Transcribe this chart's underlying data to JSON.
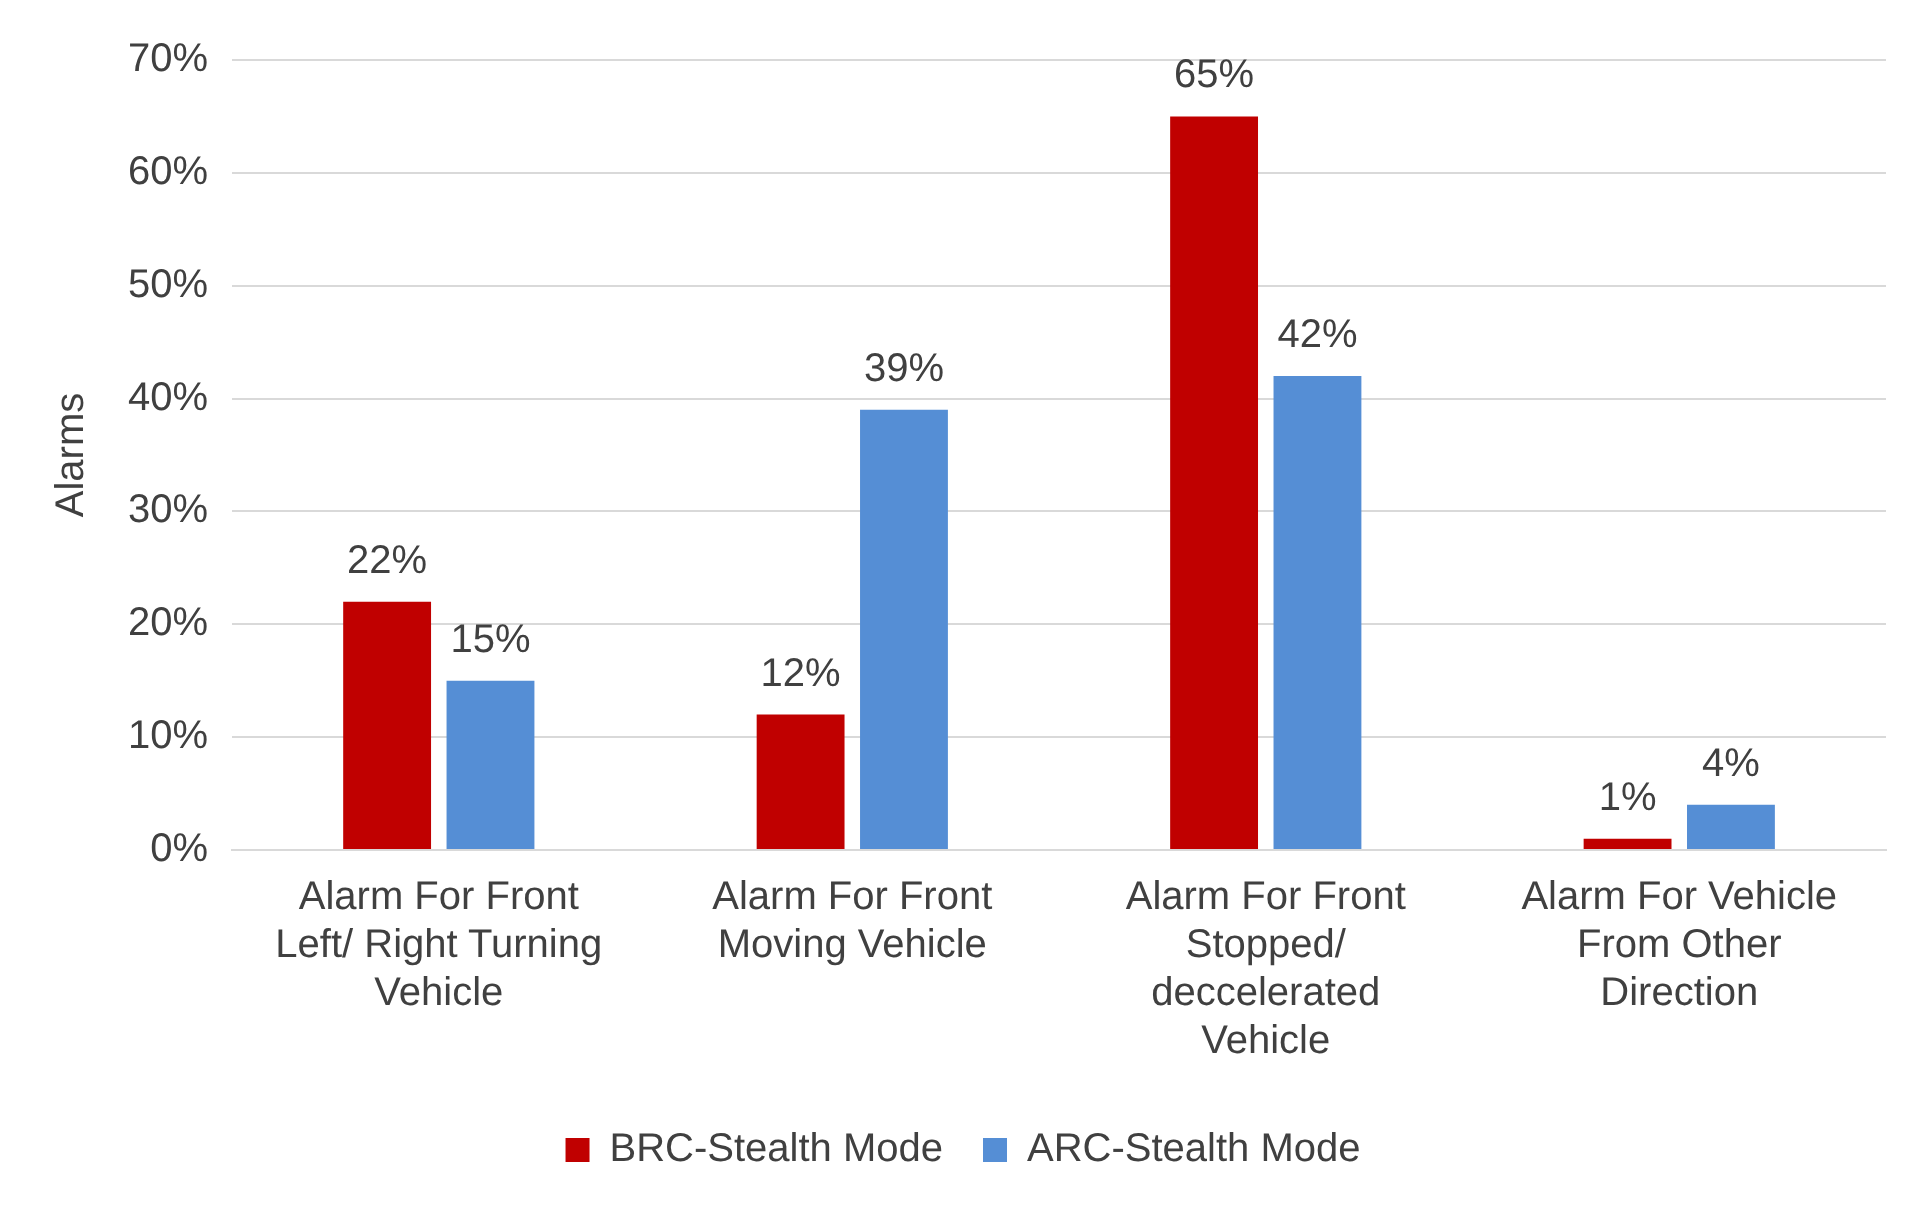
{
  "chart_data": {
    "type": "bar",
    "ylabel": "Alarms",
    "categories": [
      "Alarm For Front Left/ Right Turning Vehicle",
      "Alarm For Front Moving Vehicle",
      "Alarm For Front Stopped/ deccelerated Vehicle",
      "Alarm For Vehicle From Other Direction"
    ],
    "series": [
      {
        "name": "BRC-Stealth Mode",
        "color": "#c00000",
        "values": [
          22,
          12,
          65,
          1
        ],
        "value_labels": [
          "22%",
          "12%",
          "65%",
          "1%"
        ]
      },
      {
        "name": "ARC-Stealth Mode",
        "color": "#558ed5",
        "values": [
          15,
          39,
          42,
          4
        ],
        "value_labels": [
          "15%",
          "39%",
          "42%",
          "4%"
        ]
      }
    ],
    "ylim": [
      0,
      70
    ],
    "yticks": [
      {
        "value": 0,
        "label": "0%"
      },
      {
        "value": 10,
        "label": "10%"
      },
      {
        "value": 20,
        "label": "20%"
      },
      {
        "value": 30,
        "label": "30%"
      },
      {
        "value": 40,
        "label": "40%"
      },
      {
        "value": 50,
        "label": "50%"
      },
      {
        "value": 60,
        "label": "60%"
      },
      {
        "value": 70,
        "label": "70%"
      }
    ],
    "grid": "y",
    "legend": "bottom"
  }
}
